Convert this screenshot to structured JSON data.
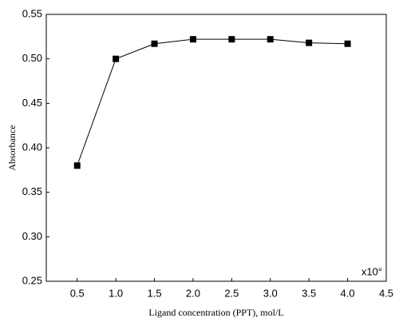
{
  "chart_data": {
    "type": "line",
    "x_label": "Ligand concentration (PPT), mol/L",
    "y_label": "Absorbance",
    "annotation": "x10°",
    "x": [
      0.5,
      1.0,
      1.5,
      2.0,
      2.5,
      3.0,
      3.5,
      4.0
    ],
    "series": [
      {
        "name": "Absorbance",
        "color": "#000000",
        "values": [
          0.38,
          0.5,
          0.517,
          0.522,
          0.522,
          0.522,
          0.518,
          0.517
        ]
      }
    ],
    "xlim": [
      0.1,
      4.5
    ],
    "xticks": [
      0.5,
      {
        "value": 1.0,
        "label": "1.0"
      },
      1.5,
      {
        "value": 2.0,
        "label": "2.0"
      },
      2.5,
      {
        "value": 3.0,
        "label": "3.0"
      },
      3.5,
      {
        "value": 4.0,
        "label": "4.0"
      },
      4.5
    ],
    "ylim": [
      0.25,
      0.55
    ],
    "yticks": [
      0.25,
      {
        "value": 0.3,
        "label": "0.30"
      },
      0.35,
      {
        "value": 0.4,
        "label": "0.40"
      },
      0.45,
      {
        "value": 0.5,
        "label": "0.50"
      },
      0.55
    ],
    "grid": false
  }
}
